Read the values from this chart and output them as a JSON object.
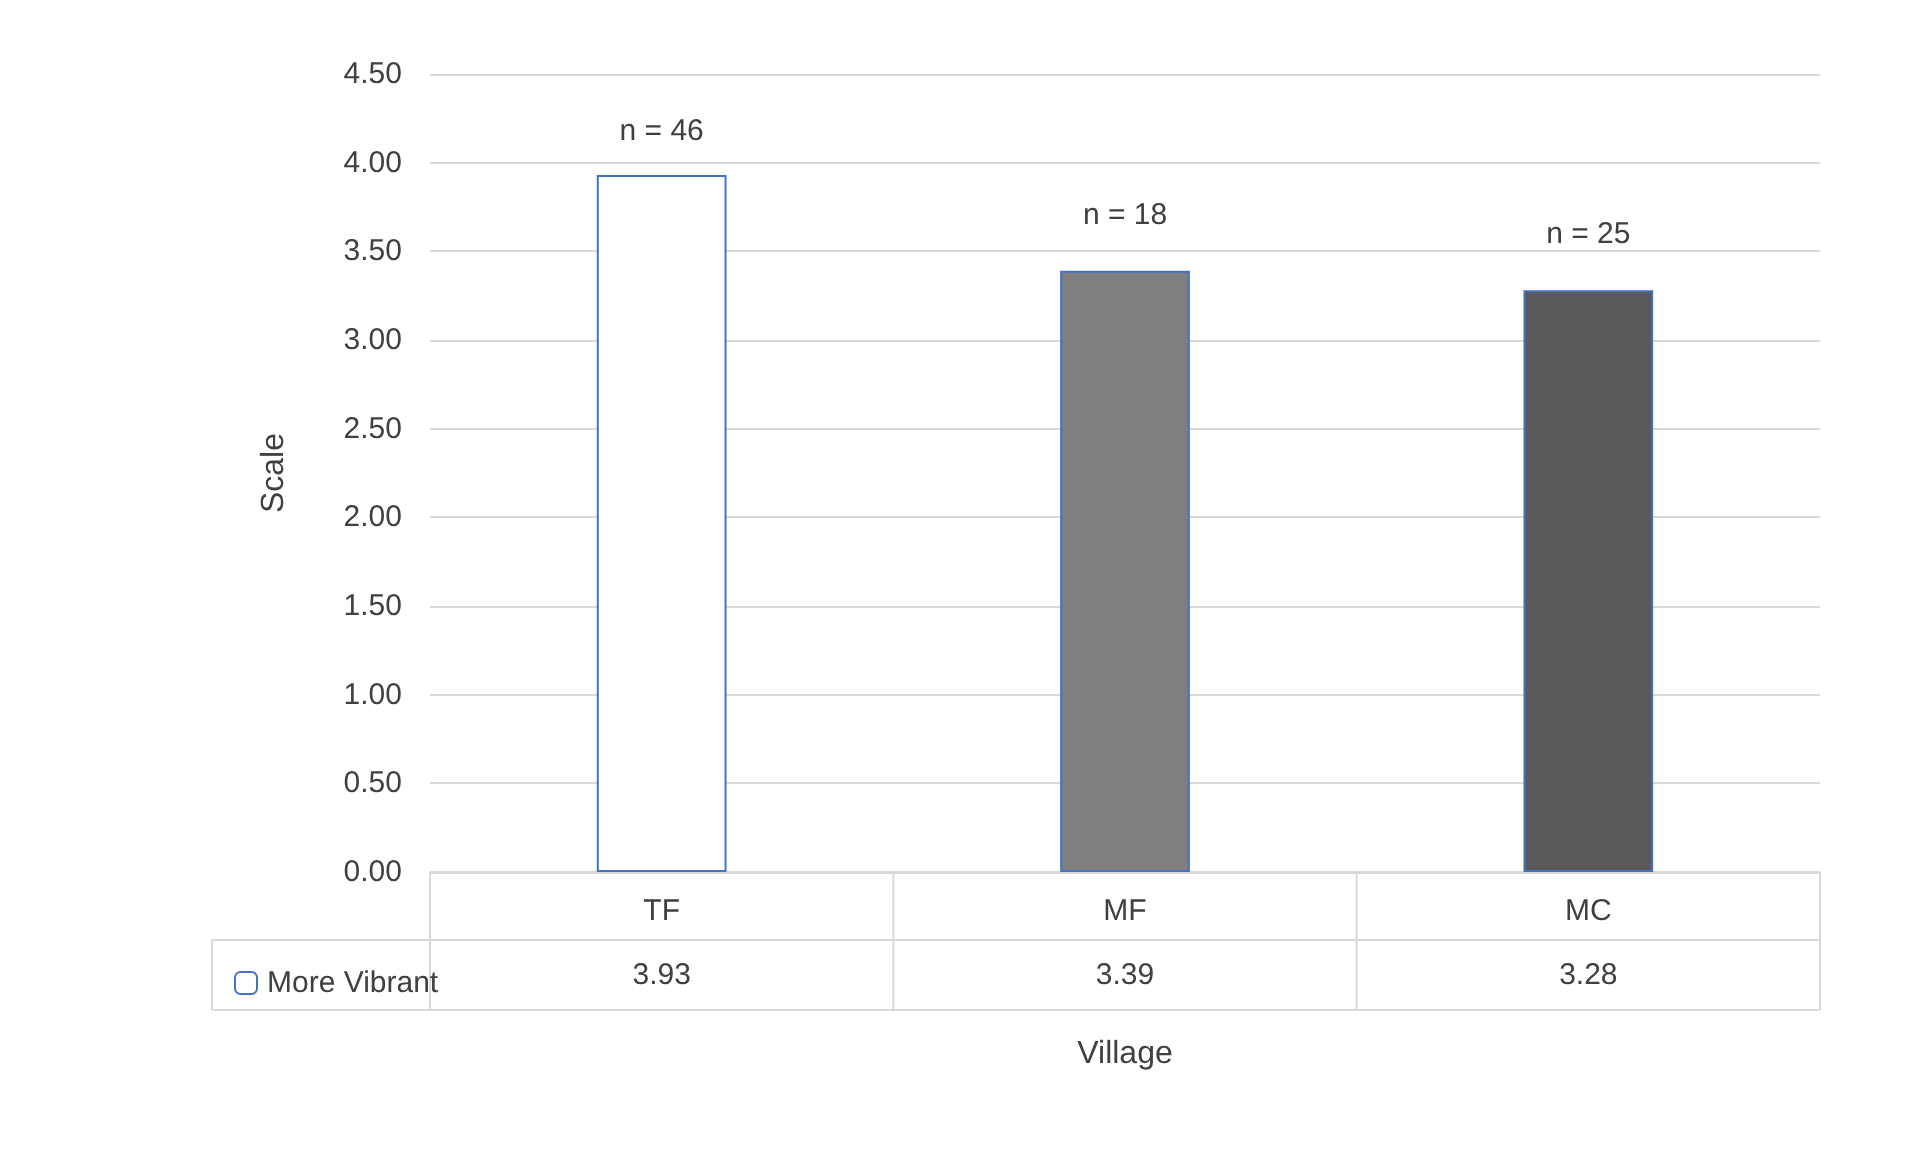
{
  "chart_data": {
    "type": "bar",
    "xlabel": "Village",
    "ylabel": "Scale",
    "categories": [
      "TF",
      "MF",
      "MC"
    ],
    "series": [
      {
        "name": "More Vibrant",
        "colors": [
          "#ffffff",
          "#7f7f7f",
          "#595959"
        ],
        "values": [
          3.93,
          3.39,
          3.28
        ]
      }
    ],
    "ylim": [
      0,
      4.5
    ],
    "yticks": [
      {
        "value": 0,
        "label": "0.00"
      },
      {
        "value": 0.5,
        "label": "0.50"
      },
      {
        "value": 1,
        "label": "1.00"
      },
      {
        "value": 1.5,
        "label": "1.50"
      },
      {
        "value": 2,
        "label": "2.00"
      },
      {
        "value": 2.5,
        "label": "2.50"
      },
      {
        "value": 3,
        "label": "3.00"
      },
      {
        "value": 3.5,
        "label": "3.50"
      },
      {
        "value": 4,
        "label": "4.00"
      },
      {
        "value": 4.5,
        "label": "4.50"
      }
    ],
    "grid": "y",
    "legend": "bottom left",
    "data_labels": true,
    "annotations": [
      "n = 46",
      "n = 18",
      "n = 25"
    ]
  }
}
